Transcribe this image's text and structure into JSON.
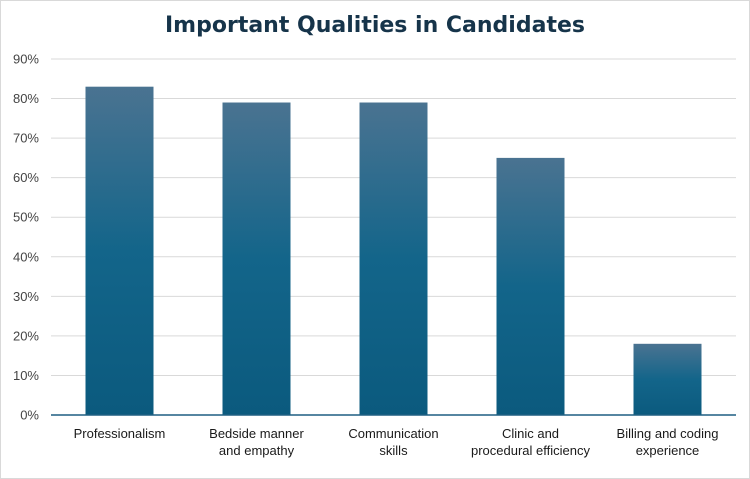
{
  "chart_data": {
    "type": "bar",
    "title": "Important Qualities in Candidates",
    "categories": [
      "Professionalism",
      "Bedside manner and empathy",
      "Communication skills",
      "Clinic and procedural efficiency",
      "Billing and coding experience"
    ],
    "category_lines": [
      [
        "Professionalism"
      ],
      [
        "Bedside manner",
        "and empathy"
      ],
      [
        "Communication",
        "skills"
      ],
      [
        "Clinic and",
        "procedural efficiency"
      ],
      [
        "Billing and coding",
        "experience"
      ]
    ],
    "values": [
      83,
      79,
      79,
      65,
      18
    ],
    "value_format": "percent",
    "ylim": [
      0,
      90
    ],
    "yticks": [
      "0%",
      "10%",
      "20%",
      "30%",
      "40%",
      "50%",
      "60%",
      "70%",
      "80%",
      "90%"
    ],
    "grid": true,
    "legend": "none",
    "colors": {
      "bar_top": "#4a7391",
      "bar_bottom": "#0b5a7e",
      "grid": "#d9d9d9",
      "axis": "#1f5f82",
      "title": "#16344a"
    }
  }
}
